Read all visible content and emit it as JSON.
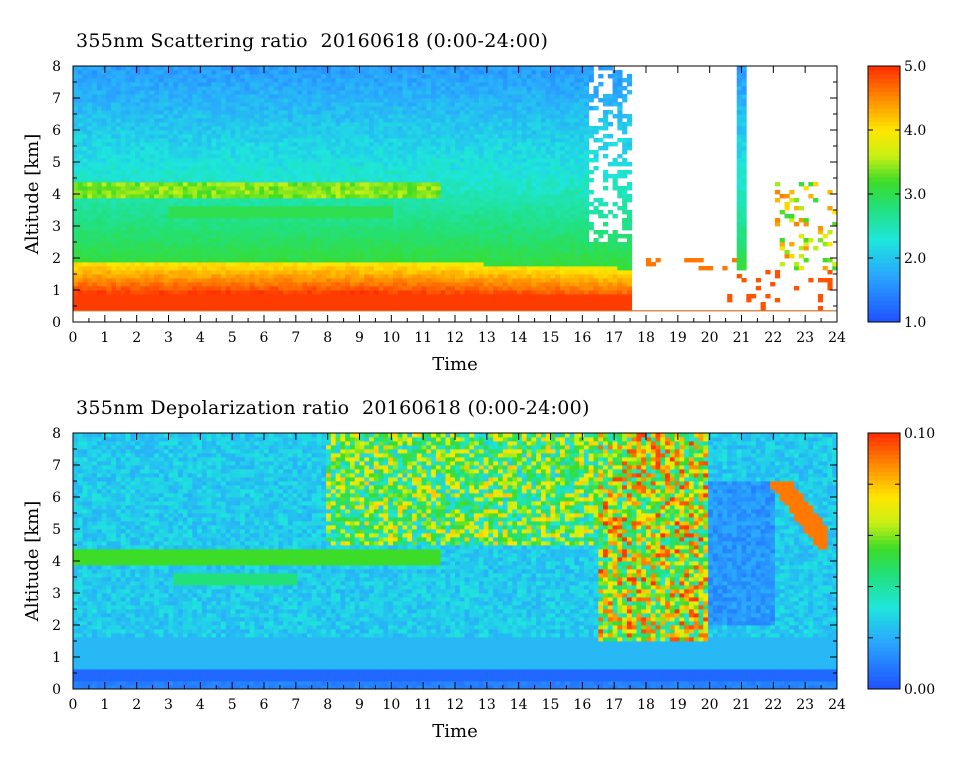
{
  "chart_data": [
    {
      "type": "heatmap",
      "title": "355nm Scattering ratio  20160618 (0:00-24:00)",
      "xlabel": "Time",
      "ylabel": "Altitude [km]",
      "xlim": [
        0,
        24
      ],
      "ylim": [
        0,
        8
      ],
      "x_ticks": [
        "0",
        "1",
        "2",
        "3",
        "4",
        "5",
        "6",
        "7",
        "8",
        "9",
        "10",
        "11",
        "12",
        "13",
        "14",
        "15",
        "16",
        "17",
        "18",
        "19",
        "20",
        "21",
        "22",
        "23",
        "24"
      ],
      "y_ticks": [
        "0",
        "1",
        "2",
        "3",
        "4",
        "5",
        "6",
        "7",
        "8"
      ],
      "colorbar": {
        "min": 1.0,
        "max": 5.0,
        "ticks": [
          "1.0",
          "2.0",
          "3.0",
          "4.0",
          "5.0"
        ]
      },
      "features": [
        {
          "desc": "boundary layer high scattering",
          "t_start": 0,
          "t_end": 17.5,
          "alt_bottom_km": 0.8,
          "alt_top_km": 1.9,
          "value": 4.5
        },
        {
          "desc": "elevated aerosol layer",
          "t_start": 0,
          "t_end": 11.5,
          "alt_bottom_km": 3.9,
          "alt_top_km": 4.3,
          "value": 3.6
        },
        {
          "desc": "cloud region, no data above",
          "t_start": 16.2,
          "t_end": 24,
          "alt_bottom_km": 1.5,
          "alt_top_km": 8.0,
          "value": null
        }
      ]
    },
    {
      "type": "heatmap",
      "title": "355nm Depolarization ratio  20160618 (0:00-24:00)",
      "xlabel": "Time",
      "ylabel": "Altitude [km]",
      "xlim": [
        0,
        24
      ],
      "ylim": [
        0,
        8
      ],
      "x_ticks": [
        "0",
        "1",
        "2",
        "3",
        "4",
        "5",
        "6",
        "7",
        "8",
        "9",
        "10",
        "11",
        "12",
        "13",
        "14",
        "15",
        "16",
        "17",
        "18",
        "19",
        "20",
        "21",
        "22",
        "23",
        "24"
      ],
      "y_ticks": [
        "0",
        "1",
        "2",
        "3",
        "4",
        "5",
        "6",
        "7",
        "8"
      ],
      "colorbar": {
        "min": 0.0,
        "max": 0.1,
        "ticks": [
          "0.00",
          "0.10"
        ]
      },
      "features": [
        {
          "desc": "elevated depolarizing layer",
          "t_start": 0,
          "t_end": 11.5,
          "alt_bottom_km": 3.9,
          "alt_top_km": 4.4,
          "value": 0.055
        },
        {
          "desc": "high depolarization noise",
          "t_start": 16.5,
          "t_end": 20,
          "alt_bottom_km": 1.5,
          "alt_top_km": 8.0,
          "value": 0.09
        }
      ]
    }
  ]
}
